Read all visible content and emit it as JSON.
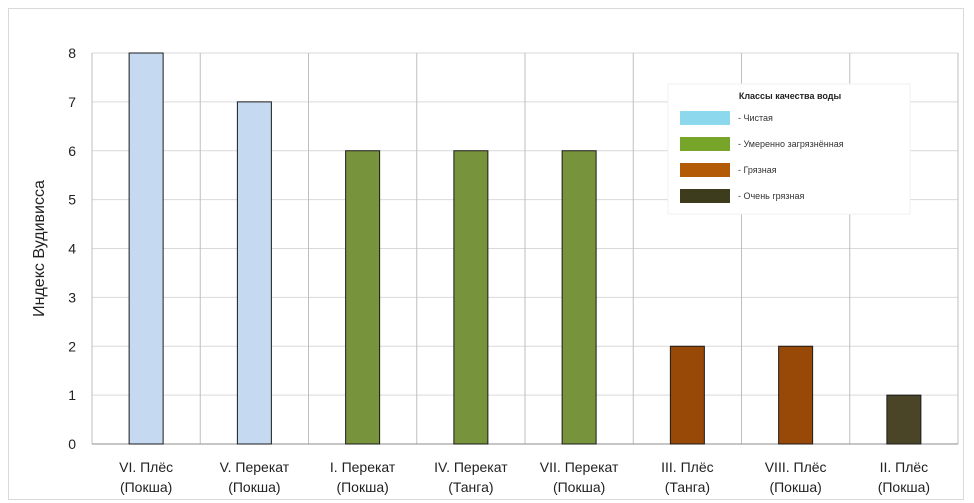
{
  "chart_data": {
    "type": "bar",
    "title": "",
    "xlabel": "",
    "ylabel": "Индекс Вудивисса",
    "ylim": [
      0,
      8
    ],
    "yticks": [
      0,
      1,
      2,
      3,
      4,
      5,
      6,
      7,
      8
    ],
    "grid": true,
    "categories": [
      [
        "VI. Плёс",
        "(Покша)"
      ],
      [
        "V. Перекат",
        "(Покша)"
      ],
      [
        "I. Перекат",
        "(Покша)"
      ],
      [
        "IV. Перекат",
        "(Танга)"
      ],
      [
        "VII. Перекат",
        "(Покша)"
      ],
      [
        "III. Плёс",
        "(Танга)"
      ],
      [
        "VIII. Плёс",
        "(Покша)"
      ],
      [
        "II. Плёс",
        "(Покша)"
      ]
    ],
    "values": [
      8,
      7,
      6,
      6,
      6,
      2,
      2,
      1
    ],
    "bar_class": [
      0,
      0,
      1,
      1,
      1,
      2,
      2,
      3
    ],
    "bar_colors": [
      "#c5d9f1",
      "#77933c",
      "#984807",
      "#4a4526"
    ],
    "legend": {
      "title": "Классы качества воды",
      "placement": "top-right",
      "items": [
        {
          "label": "- Чистая",
          "color": "#8ed8ee"
        },
        {
          "label": "- Умеренно загрязнённая",
          "color": "#77a52a"
        },
        {
          "label": "- Грязная",
          "color": "#b35a07"
        },
        {
          "label": "- Очень грязная",
          "color": "#3d3d1e"
        }
      ]
    }
  }
}
